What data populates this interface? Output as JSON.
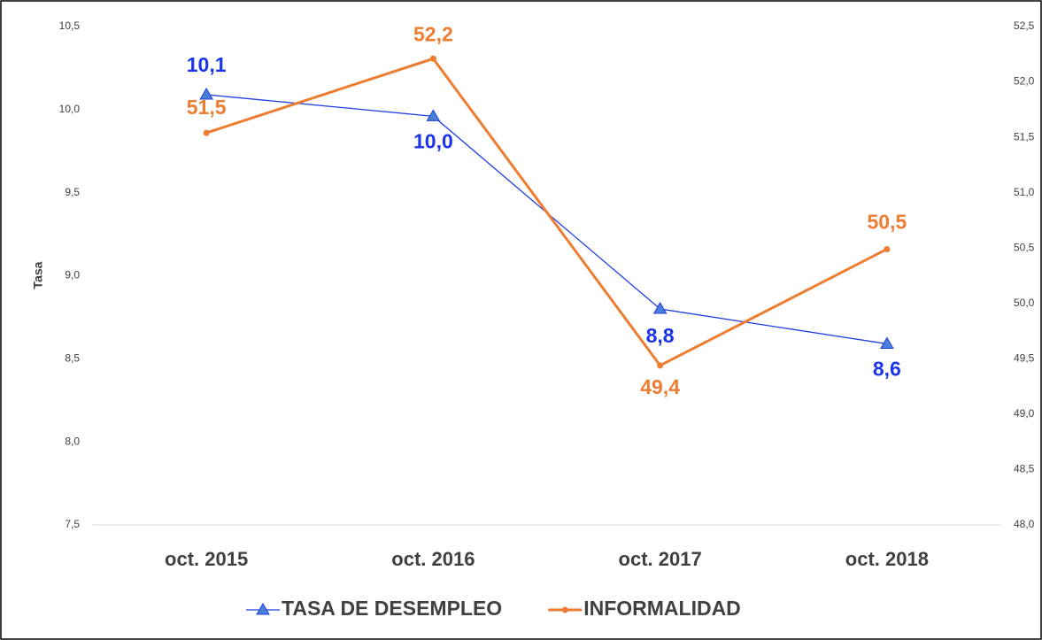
{
  "chart_data": {
    "type": "line",
    "y_label": "Tasa",
    "categories": [
      "oct. 2015",
      "oct. 2016",
      "oct. 2017",
      "oct. 2018"
    ],
    "series": [
      {
        "name": "TASA DE DESEMPLEO",
        "color": "#1f3fe0",
        "label_color": "#1a35e8",
        "marker": "triangle",
        "values": [
          10.09,
          9.96,
          8.8,
          8.59
        ],
        "value_labels": [
          "10,1",
          "10,0",
          "8,8",
          "8,6"
        ]
      },
      {
        "name": "INFORMALIDAD",
        "color": "#ed7d31",
        "label_color": "#ed7d31",
        "marker": "circle",
        "axis": "y2",
        "values": [
          51.54,
          52.21,
          49.44,
          50.49
        ],
        "value_labels": [
          "51,5",
          "52,2",
          "49,4",
          "50,5"
        ]
      }
    ],
    "ylim": [
      7.5,
      10.5
    ],
    "yticks": [
      {
        "value": 7.5,
        "label": "7,5"
      },
      {
        "value": 8.0,
        "label": "8,0"
      },
      {
        "value": 8.5,
        "label": "8,5"
      },
      {
        "value": 9.0,
        "label": "9,0"
      },
      {
        "value": 9.5,
        "label": "9,5"
      },
      {
        "value": 10.0,
        "label": "10,0"
      },
      {
        "value": 10.5,
        "label": "10,5"
      }
    ],
    "y2lim": [
      48.0,
      52.5
    ],
    "y2ticks": [
      {
        "value": 48.0,
        "label": "48,0"
      },
      {
        "value": 48.5,
        "label": "48,5"
      },
      {
        "value": 49.0,
        "label": "49,0"
      },
      {
        "value": 49.5,
        "label": "49,5"
      },
      {
        "value": 50.0,
        "label": "50,0"
      },
      {
        "value": 50.5,
        "label": "50,5"
      },
      {
        "value": 51.0,
        "label": "51,0"
      },
      {
        "value": 51.5,
        "label": "51,5"
      },
      {
        "value": 52.0,
        "label": "52,0"
      },
      {
        "value": 52.5,
        "label": "52,5"
      }
    ],
    "legend": "bottom"
  }
}
